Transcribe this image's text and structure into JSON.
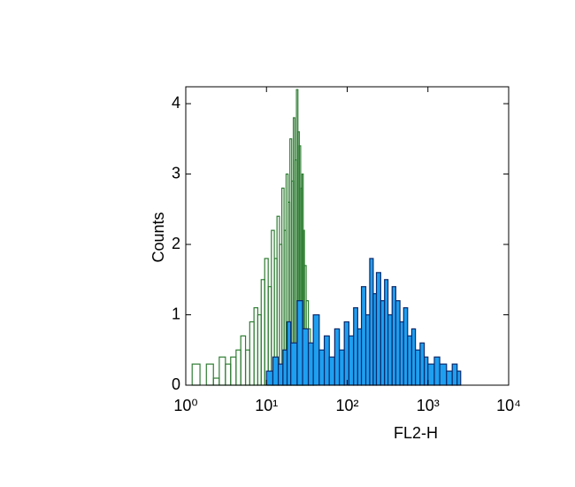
{
  "chart_data": {
    "type": "histogram",
    "xlabel": "FL2-H",
    "ylabel": "Counts",
    "xscale": "log",
    "xlim": [
      1,
      10000
    ],
    "xticks": [
      {
        "value": 1,
        "label": "10⁰"
      },
      {
        "value": 10,
        "label": "10¹"
      },
      {
        "value": 100,
        "label": "10²"
      },
      {
        "value": 1000,
        "label": "10³"
      },
      {
        "value": 10000,
        "label": "10⁴"
      }
    ],
    "ylim": [
      0,
      4.24
    ],
    "yticks": [
      0,
      1,
      2,
      3,
      4
    ],
    "series": [
      {
        "color": "#2e7d32",
        "fill": "none",
        "x": [
          1.2,
          1.5,
          1.8,
          2.2,
          2.6,
          3.1,
          3.6,
          4.2,
          4.8,
          5.5,
          6.2,
          7,
          7.8,
          8.6,
          9.5,
          10.5,
          11.5,
          12.5,
          13.5,
          14.5,
          15.5,
          16.5,
          17.5,
          18.5,
          19.5,
          20.5,
          21.5,
          22.5,
          23.5,
          24.5,
          25.5,
          26.5,
          27.5,
          28.5,
          29.5,
          31,
          33,
          35,
          38
        ],
        "values": [
          0.3,
          0,
          0.3,
          0.1,
          0.4,
          0.3,
          0.4,
          0.5,
          0.7,
          0.5,
          0.9,
          1.1,
          1.0,
          1.5,
          1.8,
          1.4,
          2.2,
          1.8,
          2.4,
          2.0,
          2.8,
          2.2,
          3.0,
          2.6,
          3.5,
          2.9,
          3.8,
          3.2,
          4.2,
          3.6,
          3.4,
          2.8,
          3.0,
          2.2,
          1.7,
          1.2,
          0.8,
          0.4,
          0.2
        ]
      },
      {
        "color": "#0d2a6b",
        "fill": "#1e9ff0",
        "x": [
          10,
          12,
          14,
          16,
          18,
          20,
          24,
          28,
          33,
          38,
          45,
          52,
          60,
          70,
          80,
          92,
          105,
          120,
          135,
          150,
          170,
          190,
          210,
          230,
          260,
          290,
          320,
          360,
          400,
          450,
          500,
          560,
          630,
          700,
          800,
          900,
          1000,
          1200,
          1400,
          1700,
          2000,
          2300
        ],
        "values": [
          0.2,
          0.4,
          0.3,
          0.5,
          0.9,
          0.6,
          1.2,
          0.8,
          0.6,
          1.0,
          0.5,
          0.7,
          0.4,
          0.8,
          0.5,
          0.9,
          0.7,
          1.1,
          0.8,
          1.4,
          1.0,
          1.8,
          1.3,
          1.6,
          1.2,
          1.5,
          1.0,
          1.4,
          1.2,
          0.9,
          1.1,
          0.7,
          0.8,
          0.5,
          0.6,
          0.4,
          0.3,
          0.4,
          0.3,
          0.2,
          0.3,
          0.2
        ]
      }
    ]
  }
}
